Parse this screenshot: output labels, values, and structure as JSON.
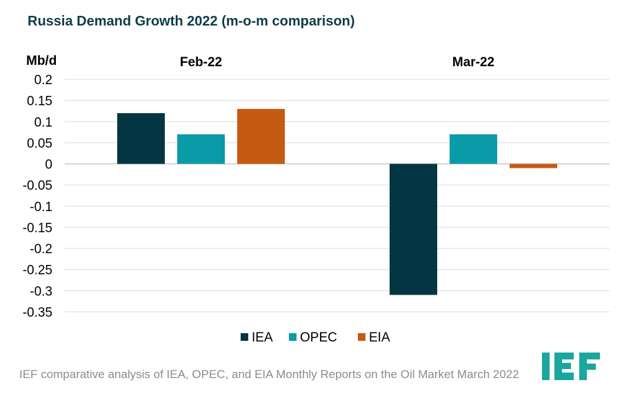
{
  "chart_data": {
    "type": "bar",
    "title": "Russia Demand Growth 2022 (m-o-m comparison)",
    "ylabel": "Mb/d",
    "xlabel": "",
    "categories": [
      "Feb-22",
      "Mar-22"
    ],
    "series": [
      {
        "name": "IEA",
        "color": "#043542",
        "values": [
          0.12,
          -0.31
        ]
      },
      {
        "name": "OPEC",
        "color": "#0b9ba8",
        "values": [
          0.07,
          0.07
        ]
      },
      {
        "name": "EIA",
        "color": "#c55a11",
        "values": [
          0.13,
          -0.01
        ]
      }
    ],
    "ylim": [
      -0.35,
      0.2
    ],
    "yticks": [
      0.2,
      0.15,
      0.1,
      0.05,
      0,
      -0.05,
      -0.1,
      -0.15,
      -0.2,
      -0.25,
      -0.3,
      -0.35
    ],
    "ytick_labels": [
      "0.2",
      "0.15",
      "0.1",
      "0.05",
      "0",
      "-0.05",
      "-0.1",
      "-0.15",
      "-0.2",
      "-0.25",
      "-0.3",
      "-0.35"
    ],
    "grid": true,
    "legend_position": "bottom-center",
    "category_labels_position": "top"
  },
  "footer": {
    "note": "IEF comparative analysis of IEA, OPEC, and EIA Monthly Reports on the Oil Market March 2022",
    "logo_text": "IEF",
    "logo_color": "#1aa7a1"
  }
}
